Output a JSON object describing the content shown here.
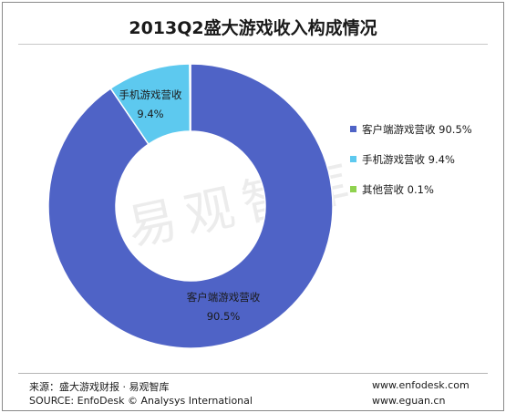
{
  "chart_data": {
    "type": "pie",
    "variant": "donut",
    "title": "2013Q2盛大游戏收入构成情况",
    "slices": [
      {
        "label": "客户端游戏营收",
        "value": 90.5,
        "value_text": "90.5%",
        "legend_text": "客户端游戏营收 90.5%",
        "color": "#4f63c6"
      },
      {
        "label": "手机游戏营收",
        "value": 9.4,
        "value_text": "9.4%",
        "legend_text": "手机游戏营收 9.4%",
        "color": "#5dc9ef"
      },
      {
        "label": "其他营收",
        "value": 0.1,
        "value_text": "0.1%",
        "legend_text": "其他营收 0.1%",
        "color": "#8fd24f"
      }
    ],
    "legend_position": "right"
  },
  "watermark": "易观智库",
  "footer": {
    "source_cn": "来源：盛大游戏财报 · 易观智库",
    "source_en": "SOURCE: EnfoDesk © Analysys International",
    "url1": "www.enfodesk.com",
    "url2": "www.eguan.cn"
  }
}
